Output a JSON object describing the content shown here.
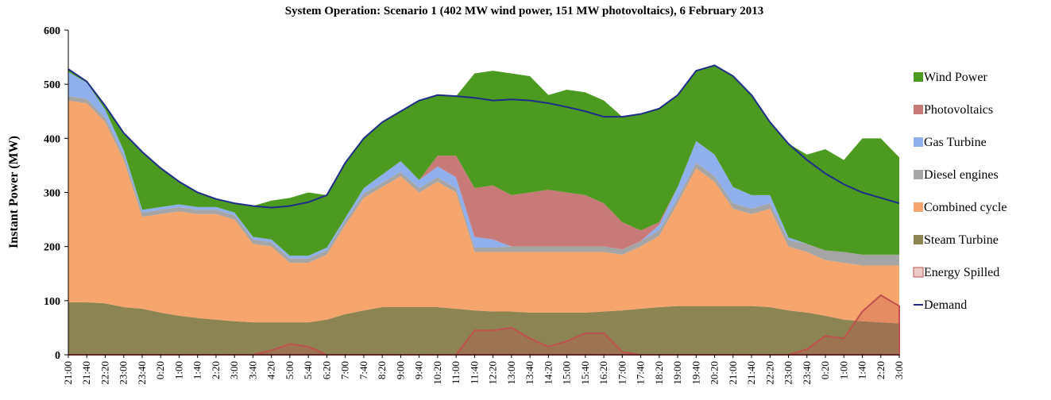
{
  "chart_data": {
    "type": "stacked_area",
    "title": "System Operation: Scenario 1 (402 MW wind power, 151 MW photovoltaics), 6 February 2013",
    "y_label": "Instant Power (MW)",
    "categories": [
      "21:00",
      "21:40",
      "22:20",
      "23:00",
      "23:40",
      "0:20",
      "1:00",
      "1:40",
      "2:20",
      "3:00",
      "3:40",
      "4:20",
      "5:00",
      "5:40",
      "6:20",
      "7:00",
      "7:40",
      "8:20",
      "9:00",
      "9:40",
      "10:20",
      "11:00",
      "11:40",
      "12:20",
      "13:00",
      "13:40",
      "14:20",
      "15:00",
      "15:40",
      "16:20",
      "17:00",
      "17:40",
      "18:20",
      "19:00",
      "19:40",
      "20:20",
      "21:00",
      "21:40",
      "22:20",
      "23:00",
      "23:40",
      "0:20",
      "1:00",
      "1:40",
      "2:20",
      "3:00"
    ],
    "ylim": [
      0,
      600
    ],
    "yticks": [
      0,
      100,
      200,
      300,
      400,
      500,
      600
    ],
    "grid": false,
    "legend": "right",
    "series": [
      {
        "name": "Wind Power",
        "type": "stacked_area",
        "color": "#4c9a1f",
        "values": [
          5,
          2,
          7,
          32,
          107,
          72,
          42,
          27,
          15,
          17,
          57,
          72,
          107,
          117,
          97,
          102,
          92,
          97,
          92,
          147,
          112,
          110,
          212,
          212,
          225,
          215,
          175,
          190,
          190,
          190,
          195,
          215,
          210,
          170,
          130,
          165,
          205,
          185,
          135,
          173,
          165,
          187,
          170,
          215,
          215,
          180
        ]
      },
      {
        "name": "Photovoltaics",
        "type": "stacked_area",
        "color": "#c77a78",
        "values": [
          0,
          0,
          0,
          0,
          0,
          0,
          0,
          0,
          0,
          0,
          0,
          0,
          0,
          0,
          0,
          0,
          0,
          0,
          0,
          0,
          20,
          40,
          90,
          100,
          95,
          100,
          105,
          100,
          95,
          80,
          50,
          20,
          5,
          0,
          0,
          0,
          0,
          0,
          0,
          0,
          0,
          0,
          0,
          0,
          0,
          0
        ]
      },
      {
        "name": "Gas Turbine",
        "type": "stacked_area",
        "color": "#8fb0ec",
        "values": [
          45,
          30,
          15,
          10,
          5,
          5,
          5,
          5,
          5,
          5,
          5,
          5,
          5,
          5,
          5,
          5,
          10,
          15,
          20,
          15,
          20,
          20,
          20,
          15,
          0,
          0,
          0,
          0,
          0,
          0,
          0,
          0,
          10,
          20,
          40,
          40,
          30,
          25,
          15,
          5,
          0,
          0,
          0,
          0,
          0,
          0
        ]
      },
      {
        "name": "Diesel engines",
        "type": "stacked_area",
        "color": "#a5a5a5",
        "values": [
          8,
          8,
          8,
          8,
          8,
          8,
          8,
          8,
          8,
          8,
          8,
          8,
          8,
          8,
          8,
          8,
          8,
          8,
          8,
          8,
          8,
          8,
          8,
          8,
          10,
          10,
          10,
          10,
          10,
          10,
          10,
          10,
          10,
          10,
          10,
          10,
          10,
          10,
          10,
          12,
          15,
          18,
          20,
          20,
          20,
          20
        ]
      },
      {
        "name": "Combined cycle",
        "type": "stacked_area",
        "color": "#f6a66c",
        "values": [
          373,
          368,
          335,
          272,
          170,
          182,
          193,
          192,
          195,
          188,
          145,
          140,
          110,
          110,
          120,
          165,
          208,
          222,
          242,
          212,
          232,
          215,
          108,
          110,
          110,
          112,
          112,
          112,
          112,
          110,
          103,
          115,
          132,
          190,
          255,
          230,
          180,
          170,
          182,
          118,
          112,
          103,
          105,
          103,
          105,
          107
        ]
      },
      {
        "name": "Steam Turbine",
        "type": "stacked_area",
        "color": "#8d8454",
        "values": [
          97,
          97,
          95,
          88,
          85,
          78,
          72,
          68,
          65,
          62,
          60,
          60,
          60,
          60,
          65,
          75,
          82,
          88,
          88,
          88,
          88,
          85,
          82,
          80,
          80,
          78,
          78,
          78,
          78,
          80,
          82,
          85,
          88,
          90,
          90,
          90,
          90,
          90,
          88,
          82,
          78,
          72,
          65,
          62,
          60,
          58
        ]
      },
      {
        "name": "Energy Spilled",
        "type": "area",
        "color": "#c0504d",
        "values": [
          0,
          0,
          0,
          0,
          0,
          0,
          0,
          0,
          0,
          0,
          0,
          8,
          20,
          15,
          0,
          0,
          0,
          0,
          0,
          0,
          0,
          0,
          45,
          45,
          50,
          30,
          15,
          25,
          40,
          40,
          5,
          0,
          0,
          0,
          0,
          0,
          0,
          0,
          0,
          0,
          10,
          35,
          30,
          80,
          110,
          90
        ]
      },
      {
        "name": "Demand",
        "type": "line",
        "color": "#1f2d8a",
        "values": [
          528,
          505,
          460,
          410,
          375,
          345,
          320,
          300,
          288,
          280,
          275,
          272,
          275,
          282,
          295,
          355,
          400,
          430,
          450,
          470,
          480,
          478,
          475,
          470,
          472,
          470,
          465,
          458,
          450,
          440,
          440,
          445,
          455,
          480,
          525,
          535,
          515,
          480,
          430,
          390,
          360,
          335,
          315,
          300,
          290,
          280
        ]
      }
    ]
  }
}
